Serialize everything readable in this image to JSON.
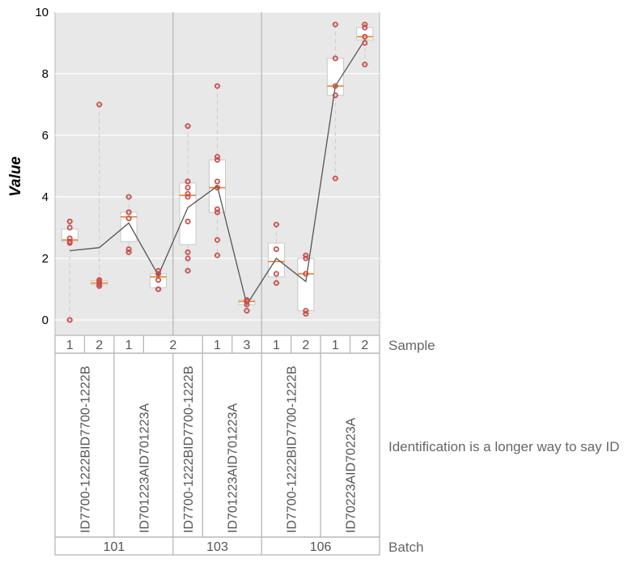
{
  "chart_data": {
    "type": "box",
    "ylabel": "Value",
    "ylim": [
      -0.5,
      10
    ],
    "yticks": [
      0,
      2,
      4,
      6,
      8,
      10
    ],
    "grid": true,
    "row_labels": {
      "sample": "Sample",
      "identification": "Identification is a longer way to say ID",
      "batch": "Batch"
    },
    "batches": [
      {
        "label": "101",
        "span": [
          0,
          4
        ]
      },
      {
        "label": "103",
        "span": [
          4,
          7
        ]
      },
      {
        "label": "106",
        "span": [
          7,
          11
        ]
      }
    ],
    "identifications": [
      {
        "label": "ID7700-1222BID7700-1222B",
        "span": [
          0,
          2
        ]
      },
      {
        "label": "ID701223AID701223A",
        "span": [
          2,
          4
        ]
      },
      {
        "label": "ID7700-1222BID7700-1222B",
        "span": [
          4,
          5
        ]
      },
      {
        "label": "ID701223AID701223A",
        "span": [
          5,
          7
        ]
      },
      {
        "label": "ID7700-1222BID7700-1222B",
        "span": [
          7,
          9
        ]
      },
      {
        "label": "ID70223AID70223A",
        "span": [
          9,
          11
        ]
      }
    ],
    "samples": [
      {
        "label": "1",
        "span": [
          0,
          1
        ]
      },
      {
        "label": "2",
        "span": [
          1,
          2
        ]
      },
      {
        "label": "1",
        "span": [
          2,
          3
        ]
      },
      {
        "label": "2",
        "span": [
          3,
          5
        ]
      },
      {
        "label": "1",
        "span": [
          5,
          6
        ]
      },
      {
        "label": "3",
        "span": [
          6,
          7
        ]
      },
      {
        "label": "1",
        "span": [
          7,
          8
        ]
      },
      {
        "label": "2",
        "span": [
          8,
          9
        ]
      },
      {
        "label": "1",
        "span": [
          9,
          10
        ]
      },
      {
        "label": "2",
        "span": [
          10,
          11
        ]
      }
    ],
    "groups": [
      {
        "q1": 2.55,
        "median": 2.6,
        "q3": 2.95,
        "wlo": 0.0,
        "whi": 3.2,
        "mean": 2.25,
        "points": [
          0.0,
          2.5,
          2.55,
          2.65,
          3.0,
          3.2
        ]
      },
      {
        "q1": 1.15,
        "median": 1.2,
        "q3": 1.27,
        "wlo": 1.1,
        "whi": 7.0,
        "mean": 2.35,
        "points": [
          1.1,
          1.15,
          1.2,
          1.25,
          1.3,
          7.0
        ]
      },
      {
        "q1": 2.55,
        "median": 3.35,
        "q3": 3.5,
        "wlo": 2.2,
        "whi": 4.0,
        "mean": 3.15,
        "points": [
          2.2,
          2.3,
          3.3,
          3.5,
          3.5,
          4.0
        ]
      },
      {
        "q1": 1.05,
        "median": 1.4,
        "q3": 1.5,
        "wlo": 1.0,
        "whi": 1.6,
        "mean": 1.45,
        "points": [
          1.0,
          1.0,
          1.3,
          1.5,
          1.6
        ]
      },
      {
        "q1": 2.45,
        "median": 4.05,
        "q3": 4.45,
        "wlo": 1.6,
        "whi": 6.3,
        "mean": 3.65,
        "points": [
          1.6,
          2.0,
          2.2,
          3.2,
          4.0,
          4.1,
          4.3,
          4.5,
          4.5,
          6.3
        ]
      },
      {
        "q1": 3.5,
        "median": 4.3,
        "q3": 5.2,
        "wlo": 2.1,
        "whi": 7.6,
        "mean": 4.35,
        "points": [
          2.1,
          2.6,
          3.5,
          3.6,
          4.3,
          4.5,
          5.2,
          5.3,
          7.6
        ]
      },
      {
        "q1": 0.5,
        "median": 0.6,
        "q3": 0.65,
        "wlo": 0.3,
        "whi": 0.65,
        "mean": 0.5,
        "points": [
          0.3,
          0.5,
          0.6,
          0.65
        ]
      },
      {
        "q1": 1.4,
        "median": 1.9,
        "q3": 2.5,
        "wlo": 1.2,
        "whi": 3.1,
        "mean": 2.0,
        "points": [
          1.2,
          1.5,
          2.3,
          3.1
        ]
      },
      {
        "q1": 0.3,
        "median": 1.5,
        "q3": 2.0,
        "wlo": 0.2,
        "whi": 2.1,
        "mean": 1.25,
        "points": [
          0.2,
          0.3,
          1.5,
          2.0,
          2.1
        ]
      },
      {
        "q1": 7.3,
        "median": 7.6,
        "q3": 8.5,
        "wlo": 4.6,
        "whi": 9.6,
        "mean": 7.6,
        "points": [
          4.6,
          7.3,
          7.6,
          8.5,
          9.6
        ]
      },
      {
        "q1": 9.1,
        "median": 9.2,
        "q3": 9.5,
        "wlo": 8.3,
        "whi": 9.6,
        "mean": 9.1,
        "points": [
          8.3,
          9.0,
          9.2,
          9.5,
          9.6
        ]
      }
    ],
    "colors": {
      "background": "#e8e8e8",
      "grid": "#ffffff",
      "separator": "#b8b8b8",
      "box_edge": "#c8c8c8",
      "median": "#e87a18",
      "point": "#c8504a",
      "mean_line": "#555555",
      "whisker": "#cccccc"
    }
  }
}
